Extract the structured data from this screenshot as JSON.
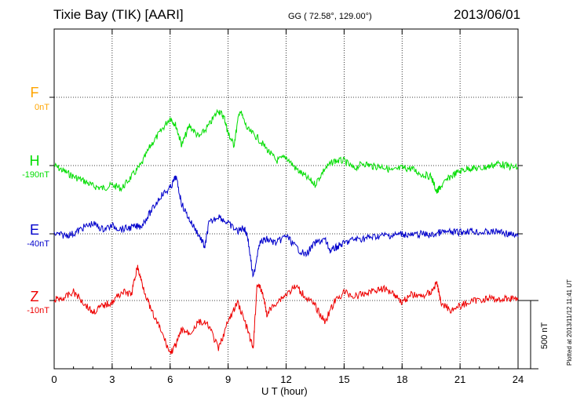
{
  "header": {
    "station": "Tixie Bay (TIK)  [AARI]",
    "coords": "GG ( 72.58°, 129.00°)",
    "date": "2013/06/01"
  },
  "plotted_note": "Plotted at 2013/11/12 11:41 UT",
  "scale_bar": {
    "label": "500 nT",
    "value_nT": 500
  },
  "chart_data": {
    "type": "line",
    "xlabel": "U T (hour)",
    "xlim": [
      0,
      24
    ],
    "xticks": [
      0,
      3,
      6,
      9,
      12,
      15,
      18,
      21,
      24
    ],
    "series": [
      {
        "name": "F",
        "offset_label": "0nT",
        "color": "#ffa500",
        "points": []
      },
      {
        "name": "H",
        "offset_label": "-190nT",
        "color": "#00dd00",
        "points": [
          [
            0,
            211
          ],
          [
            0.5,
            218
          ],
          [
            1,
            225
          ],
          [
            1.5,
            230
          ],
          [
            2,
            237
          ],
          [
            2.5,
            240
          ],
          [
            3,
            236
          ],
          [
            3.5,
            240
          ],
          [
            4,
            225
          ],
          [
            4.5,
            210
          ],
          [
            5,
            185
          ],
          [
            5.5,
            168
          ],
          [
            6,
            150
          ],
          [
            6.3,
            160
          ],
          [
            6.6,
            185
          ],
          [
            7,
            160
          ],
          [
            7.5,
            175
          ],
          [
            8,
            160
          ],
          [
            8.5,
            140
          ],
          [
            8.8,
            150
          ],
          [
            9,
            170
          ],
          [
            9.3,
            185
          ],
          [
            9.6,
            140
          ],
          [
            10,
            165
          ],
          [
            10.5,
            175
          ],
          [
            11,
            190
          ],
          [
            11.5,
            205
          ],
          [
            12,
            200
          ],
          [
            12.5,
            215
          ],
          [
            13,
            225
          ],
          [
            13.5,
            235
          ],
          [
            14,
            215
          ],
          [
            14.5,
            205
          ],
          [
            15,
            205
          ],
          [
            15.5,
            215
          ],
          [
            16,
            208
          ],
          [
            16.5,
            212
          ],
          [
            17,
            212
          ],
          [
            17.5,
            218
          ],
          [
            18,
            214
          ],
          [
            18.5,
            215
          ],
          [
            19,
            222
          ],
          [
            19.5,
            225
          ],
          [
            19.8,
            245
          ],
          [
            20,
            238
          ],
          [
            20.5,
            225
          ],
          [
            21,
            218
          ],
          [
            21.5,
            214
          ],
          [
            22,
            215
          ],
          [
            22.5,
            212
          ],
          [
            23,
            208
          ],
          [
            23.5,
            212
          ],
          [
            24,
            214
          ]
        ]
      },
      {
        "name": "E",
        "offset_label": "-40nT",
        "color": "#0000cc",
        "points": [
          [
            0,
            298
          ],
          [
            0.5,
            300
          ],
          [
            1,
            298
          ],
          [
            1.5,
            290
          ],
          [
            2,
            285
          ],
          [
            2.5,
            292
          ],
          [
            3,
            288
          ],
          [
            3.5,
            292
          ],
          [
            4,
            290
          ],
          [
            4.5,
            288
          ],
          [
            5,
            270
          ],
          [
            5.5,
            250
          ],
          [
            6,
            240
          ],
          [
            6.3,
            225
          ],
          [
            6.6,
            260
          ],
          [
            7,
            280
          ],
          [
            7.5,
            300
          ],
          [
            7.8,
            315
          ],
          [
            8,
            285
          ],
          [
            8.5,
            275
          ],
          [
            9,
            285
          ],
          [
            9.5,
            295
          ],
          [
            9.8,
            290
          ],
          [
            10,
            300
          ],
          [
            10.3,
            355
          ],
          [
            10.6,
            310
          ],
          [
            11,
            305
          ],
          [
            11.5,
            310
          ],
          [
            12,
            300
          ],
          [
            12.5,
            315
          ],
          [
            13,
            325
          ],
          [
            13.5,
            310
          ],
          [
            14,
            305
          ],
          [
            14.3,
            320
          ],
          [
            14.6,
            315
          ],
          [
            15,
            310
          ],
          [
            15.5,
            305
          ],
          [
            16,
            304
          ],
          [
            16.5,
            302
          ],
          [
            17,
            300
          ],
          [
            17.5,
            300
          ],
          [
            18,
            298
          ],
          [
            18.5,
            300
          ],
          [
            19,
            298
          ],
          [
            19.5,
            300
          ],
          [
            20,
            296
          ],
          [
            20.5,
            296
          ],
          [
            21,
            296
          ],
          [
            21.5,
            294
          ],
          [
            22,
            296
          ],
          [
            22.5,
            296
          ],
          [
            23,
            295
          ],
          [
            23.5,
            298
          ],
          [
            24,
            302
          ]
        ]
      },
      {
        "name": "Z",
        "offset_label": "-10nT",
        "color": "#ee0000",
        "points": [
          [
            0,
            382
          ],
          [
            0.5,
            380
          ],
          [
            1,
            372
          ],
          [
            1.5,
            385
          ],
          [
            2,
            398
          ],
          [
            2.5,
            390
          ],
          [
            3,
            385
          ],
          [
            3.5,
            372
          ],
          [
            4,
            375
          ],
          [
            4.3,
            340
          ],
          [
            4.6,
            365
          ],
          [
            5,
            395
          ],
          [
            5.5,
            420
          ],
          [
            6,
            450
          ],
          [
            6.3,
            440
          ],
          [
            6.6,
            420
          ],
          [
            7,
            425
          ],
          [
            7.5,
            410
          ],
          [
            8,
            415
          ],
          [
            8.5,
            445
          ],
          [
            9,
            410
          ],
          [
            9.5,
            385
          ],
          [
            10,
            420
          ],
          [
            10.3,
            445
          ],
          [
            10.5,
            360
          ],
          [
            10.8,
            375
          ],
          [
            11,
            400
          ],
          [
            11.5,
            385
          ],
          [
            12,
            375
          ],
          [
            12.5,
            365
          ],
          [
            13,
            378
          ],
          [
            13.5,
            390
          ],
          [
            14,
            410
          ],
          [
            14.5,
            385
          ],
          [
            15,
            372
          ],
          [
            15.5,
            378
          ],
          [
            16,
            375
          ],
          [
            16.5,
            370
          ],
          [
            17,
            368
          ],
          [
            17.5,
            372
          ],
          [
            18,
            385
          ],
          [
            18.5,
            375
          ],
          [
            19,
            378
          ],
          [
            19.5,
            372
          ],
          [
            19.8,
            360
          ],
          [
            20,
            385
          ],
          [
            20.5,
            395
          ],
          [
            21,
            390
          ],
          [
            21.5,
            385
          ],
          [
            22,
            382
          ],
          [
            22.5,
            380
          ],
          [
            23,
            382
          ],
          [
            23.5,
            380
          ],
          [
            24,
            380
          ]
        ]
      }
    ]
  }
}
